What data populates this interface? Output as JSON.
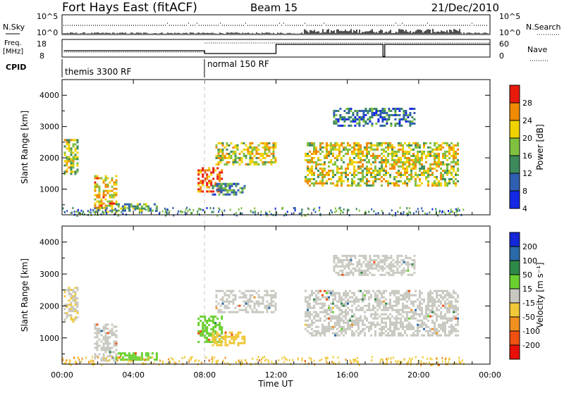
{
  "header": {
    "title": "Fort Hays East (fitACF)",
    "beam": "Beam 15",
    "date": "21/Dec/2010"
  },
  "top_panels": {
    "nsky_label": "N.Sky",
    "nsearch_label": "N.Search",
    "count_ticks": [
      "10^5",
      "10^0"
    ],
    "freq_label": [
      "Freq.",
      "[MHz]"
    ],
    "freq_ticks": [
      "18",
      "8"
    ],
    "nave_label": "Nave",
    "nave_ticks": [
      "60",
      "0"
    ],
    "cpid_label": "CPID",
    "cpid_segments": [
      {
        "start_hr": 0,
        "label": "themis 3300 RF"
      },
      {
        "start_hr": 8,
        "label": "normal 150 RF"
      }
    ]
  },
  "colorbars": {
    "power": {
      "label": "Power [dB]",
      "ticks": [
        "4",
        "8",
        "12",
        "16",
        "20",
        "24",
        "28"
      ],
      "colors": [
        "#1428e6",
        "#2f5fb0",
        "#3c8a5c",
        "#80c040",
        "#f0d200",
        "#f08a00",
        "#e81a0c"
      ]
    },
    "velocity": {
      "label": "Velocity [m s⁻¹]",
      "ticks": [
        "200",
        "100",
        "50",
        "15",
        "-15",
        "-50",
        "-100",
        "-200"
      ],
      "colors": [
        "#1428d8",
        "#2a6aa8",
        "#2e8a4a",
        "#6ad030",
        "#c8c8c0",
        "#f0c838",
        "#f09020",
        "#f05010",
        "#e81008"
      ]
    }
  },
  "chart_data": [
    {
      "type": "heatmap",
      "panel": "power",
      "xlabel": "",
      "ylabel": "Slant Range [km]",
      "x_unit": "hours UT",
      "xlim": [
        0,
        24
      ],
      "ylim": [
        180,
        4500
      ],
      "yticks": [
        1000,
        2000,
        3000,
        4000
      ],
      "xticks": [
        "00:00",
        "04:00",
        "08:00",
        "12:00",
        "16:00",
        "20:00",
        "00:00"
      ],
      "color_scale_db": [
        0,
        30
      ],
      "regions": [
        {
          "t0": 0.1,
          "t1": 0.9,
          "r0": 1500,
          "r1": 2600,
          "level": 16
        },
        {
          "t0": 1.8,
          "t1": 3.0,
          "r0": 300,
          "r1": 1450,
          "level": 20
        },
        {
          "t0": 3.0,
          "t1": 5.3,
          "r0": 300,
          "r1": 550,
          "level": 12
        },
        {
          "t0": 7.6,
          "t1": 9.0,
          "r0": 900,
          "r1": 1700,
          "level": 26
        },
        {
          "t0": 8.4,
          "t1": 10.2,
          "r0": 800,
          "r1": 1200,
          "level": 10
        },
        {
          "t0": 8.6,
          "t1": 12.0,
          "r0": 1800,
          "r1": 2500,
          "level": 18
        },
        {
          "t0": 13.6,
          "t1": 22.2,
          "r0": 1100,
          "r1": 2500,
          "level": 18
        },
        {
          "t0": 15.2,
          "t1": 19.8,
          "r0": 3000,
          "r1": 3600,
          "level": 8
        }
      ]
    },
    {
      "type": "heatmap",
      "panel": "velocity",
      "xlabel": "Time UT",
      "ylabel": "Slant Range [km]",
      "x_unit": "hours UT",
      "xlim": [
        0,
        24
      ],
      "ylim": [
        180,
        4500
      ],
      "yticks": [
        1000,
        2000,
        3000,
        4000
      ],
      "xticks": [
        "00:00",
        "04:00",
        "08:00",
        "12:00",
        "16:00",
        "20:00",
        "00:00"
      ],
      "color_scale_ms": [
        -250,
        250
      ],
      "regions": [
        {
          "t0": 0.1,
          "t1": 0.9,
          "r0": 1500,
          "r1": 2600,
          "vel": -10
        },
        {
          "t0": 1.8,
          "t1": 3.0,
          "r0": 300,
          "r1": 1450,
          "vel": 0
        },
        {
          "t0": 3.0,
          "t1": 5.3,
          "r0": 300,
          "r1": 550,
          "vel": 30
        },
        {
          "t0": 7.6,
          "t1": 9.0,
          "r0": 900,
          "r1": 1700,
          "vel": 30
        },
        {
          "t0": 8.4,
          "t1": 10.2,
          "r0": 800,
          "r1": 1200,
          "vel": -30
        },
        {
          "t0": 8.6,
          "t1": 12.0,
          "r0": 1800,
          "r1": 2500,
          "vel": 0
        },
        {
          "t0": 13.6,
          "t1": 22.2,
          "r0": 1100,
          "r1": 2500,
          "vel": 0
        },
        {
          "t0": 15.2,
          "t1": 19.8,
          "r0": 3000,
          "r1": 3600,
          "vel": 0
        }
      ]
    }
  ]
}
